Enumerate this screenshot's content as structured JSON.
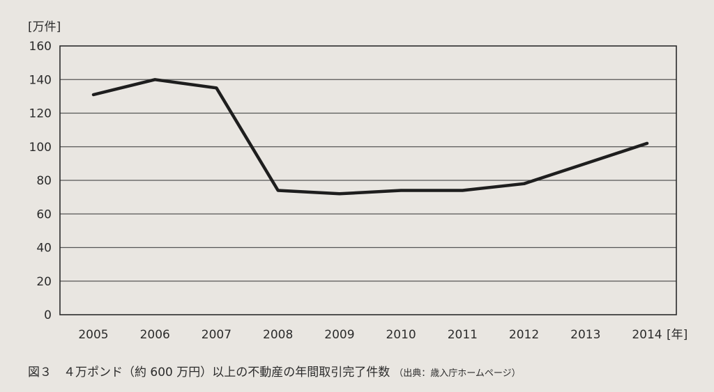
{
  "chart_data": {
    "type": "line",
    "y_unit": "[万件]",
    "x_unit": "[年]",
    "categories": [
      "2005",
      "2006",
      "2007",
      "2008",
      "2009",
      "2010",
      "2011",
      "2012",
      "2013",
      "2014"
    ],
    "series": [
      {
        "values": [
          131,
          140,
          135,
          74,
          72,
          74,
          74,
          78,
          90,
          102
        ]
      }
    ],
    "ylim": [
      0,
      160
    ],
    "yticks": [
      "0",
      "20",
      "40",
      "60",
      "80",
      "100",
      "120",
      "140",
      "160"
    ],
    "grid": true,
    "line_color": "#1e1e1e",
    "grid_color": "#555555"
  },
  "caption": {
    "text": "図３　４万ポンド（約 600 万円）以上の不動産の年間取引完了件数",
    "source": "（出典：歳入庁ホームページ）"
  }
}
